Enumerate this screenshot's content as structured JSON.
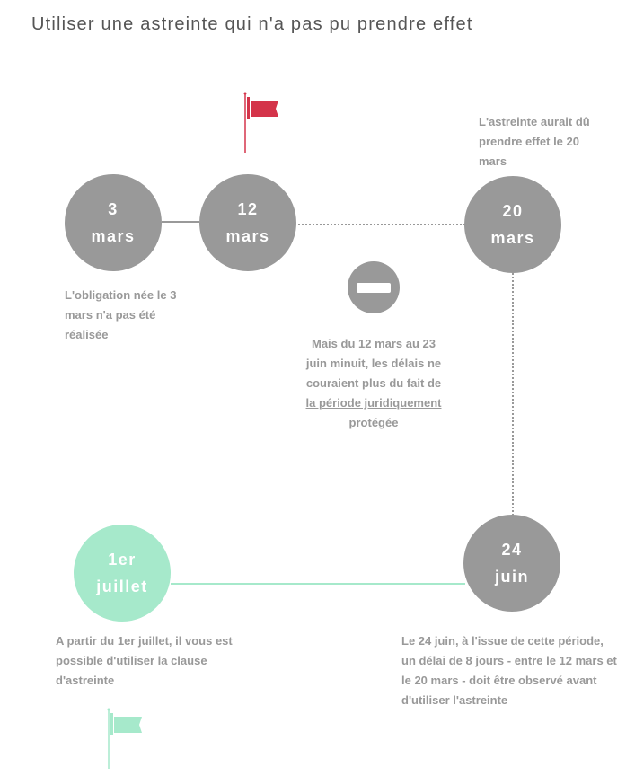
{
  "title": "Utiliser une astreinte qui n'a pas pu prendre effet",
  "colors": {
    "grey": "#999999",
    "red_flag": "#d4344a",
    "green": "#a6e9cb"
  },
  "nodes": {
    "n1": {
      "line1": "3",
      "line2": "mars"
    },
    "n2": {
      "line1": "12",
      "line2": "mars"
    },
    "n3": {
      "line1": "20",
      "line2": "mars"
    },
    "n4": {
      "line1": "24",
      "line2": "juin"
    },
    "n5": {
      "line1": "1er",
      "line2": "juillet"
    }
  },
  "notes": {
    "n1": "L'obligation née le 3 mars n'a pas été réalisée",
    "n3": "L'astreinte aurait dû prendre effet le 20 mars",
    "pause_pre": "Mais du 12 mars au 23 juin minuit, les délais ne couraient plus du fait de ",
    "pause_link": "la période juridiquement protégée",
    "n4_pre": "Le 24 juin, à l'issue de cette période, ",
    "n4_link": "un délai de 8 jours",
    "n4_post": " - entre le 12 mars et le 20 mars - doit être observé avant d'utiliser l'astreinte",
    "n5": "A partir du 1er juillet, il vous est possible d'utiliser la clause d'astreinte"
  },
  "icons": [
    "red-flag-icon",
    "no-entry-icon",
    "green-flag-icon"
  ]
}
